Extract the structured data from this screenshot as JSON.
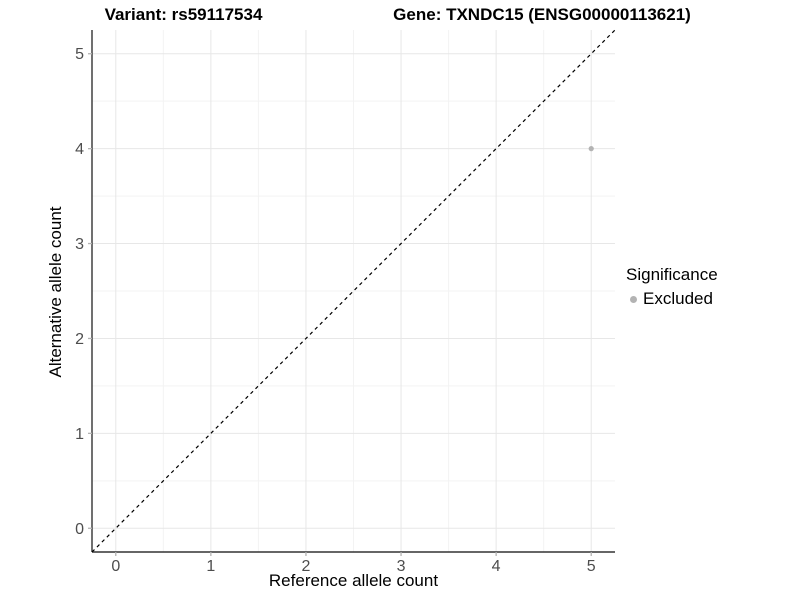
{
  "chart_data": {
    "type": "scatter",
    "title_left": "Variant: rs59117534",
    "title_right": "Gene: TXNDC15 (ENSG00000113621)",
    "xlabel": "Reference allele count",
    "ylabel": "Alternative allele count",
    "xlim": [
      -0.25,
      5.25
    ],
    "ylim": [
      -0.25,
      5.25
    ],
    "x_ticks": [
      0,
      1,
      2,
      3,
      4,
      5
    ],
    "y_ticks": [
      0,
      1,
      2,
      3,
      4,
      5
    ],
    "x_minor_ticks": [
      0.5,
      1.5,
      2.5,
      3.5,
      4.5
    ],
    "y_minor_ticks": [
      0.5,
      1.5,
      2.5,
      3.5,
      4.5
    ],
    "grid": true,
    "reference_line": {
      "type": "identity",
      "style": "dashed",
      "color": "#000000",
      "from": [
        -0.25,
        -0.25
      ],
      "to": [
        5.25,
        5.25
      ]
    },
    "series": [
      {
        "name": "Excluded",
        "color": "#b3b3b3",
        "points": [
          {
            "x": 5,
            "y": 4
          }
        ]
      }
    ],
    "legend": {
      "title": "Significance",
      "position": "right",
      "items": [
        {
          "label": "Excluded",
          "color": "#b3b3b3"
        }
      ]
    },
    "colors": {
      "grid_major": "#e7e7e7",
      "grid_minor": "#f3f3f3",
      "axis_line": "#333333",
      "tick_mark": "#b3b3b3",
      "tick_label": "#4d4d4d",
      "point": "#b3b3b3",
      "panel_background": "#ffffff"
    }
  }
}
